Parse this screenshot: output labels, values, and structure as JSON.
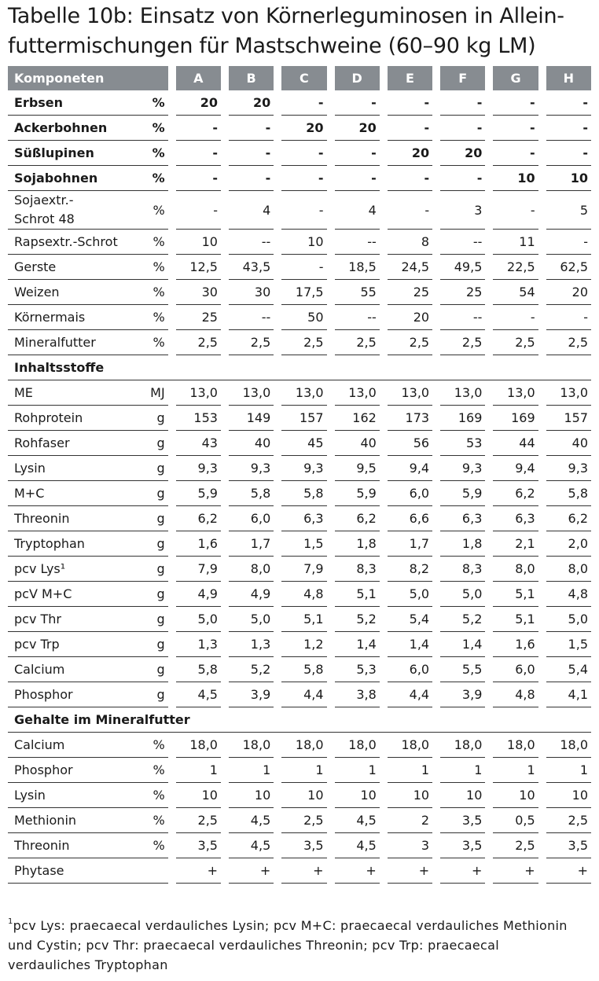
{
  "title": [
    "Tabelle 10b: Einsatz von Körnerleguminosen in Allein-",
    "futtermischungen für Mastschweine (60–90 kg LM)"
  ],
  "table": {
    "header": [
      "Komponeten",
      "A",
      "B",
      "C",
      "D",
      "E",
      "F",
      "G",
      "H"
    ],
    "body": [
      {
        "label": "Erbsen",
        "unit": "%",
        "bold": true,
        "values": [
          "20",
          "20",
          "-",
          "-",
          "-",
          "-",
          "-",
          "-"
        ]
      },
      {
        "label": "Ackerbohnen",
        "unit": "%",
        "bold": true,
        "values": [
          "-",
          "-",
          "20",
          "20",
          "-",
          "-",
          "-",
          "-"
        ]
      },
      {
        "label": "Süßlupinen",
        "unit": "%",
        "bold": true,
        "values": [
          "-",
          "-",
          "-",
          "-",
          "20",
          "20",
          "-",
          "-"
        ]
      },
      {
        "label": "Sojabohnen",
        "unit": "%",
        "bold": true,
        "values": [
          "-",
          "-",
          "-",
          "-",
          "-",
          "-",
          "10",
          "10"
        ]
      },
      {
        "label": "Sojaextr.-\nSchrot 48",
        "unit": "%",
        "values": [
          "-",
          "4",
          "-",
          "4",
          "-",
          "3",
          "-",
          "5"
        ]
      },
      {
        "label": "Rapsextr.-Schrot",
        "unit": "%",
        "values": [
          "10",
          "--",
          "10",
          "--",
          "8",
          "--",
          "11",
          "-"
        ]
      },
      {
        "label": "Gerste",
        "unit": "%",
        "values": [
          "12,5",
          "43,5",
          "-",
          "18,5",
          "24,5",
          "49,5",
          "22,5",
          "62,5"
        ]
      },
      {
        "label": "Weizen",
        "unit": "%",
        "values": [
          "30",
          "30",
          "17,5",
          "55",
          "25",
          "25",
          "54",
          "20"
        ]
      },
      {
        "label": "Körnermais",
        "unit": "%",
        "values": [
          "25",
          "--",
          "50",
          "--",
          "20",
          "--",
          "-",
          "-"
        ]
      },
      {
        "label": "Mineralfutter",
        "unit": "%",
        "values": [
          "2,5",
          "2,5",
          "2,5",
          "2,5",
          "2,5",
          "2,5",
          "2,5",
          "2,5"
        ]
      },
      {
        "section": "Inhaltsstoffe"
      },
      {
        "label": "ME",
        "unit": "MJ",
        "values": [
          "13,0",
          "13,0",
          "13,0",
          "13,0",
          "13,0",
          "13,0",
          "13,0",
          "13,0"
        ]
      },
      {
        "label": "Rohprotein",
        "unit": "g",
        "values": [
          "153",
          "149",
          "157",
          "162",
          "173",
          "169",
          "169",
          "157"
        ]
      },
      {
        "label": "Rohfaser",
        "unit": "g",
        "values": [
          "43",
          "40",
          "45",
          "40",
          "56",
          "53",
          "44",
          "40"
        ]
      },
      {
        "label": "Lysin",
        "unit": "g",
        "values": [
          "9,3",
          "9,3",
          "9,3",
          "9,5",
          "9,4",
          "9,3",
          "9,4",
          "9,3"
        ]
      },
      {
        "label": "M+C",
        "unit": "g",
        "values": [
          "5,9",
          "5,8",
          "5,8",
          "5,9",
          "6,0",
          "5,9",
          "6,2",
          "5,8"
        ]
      },
      {
        "label": "Threonin",
        "unit": "g",
        "values": [
          "6,2",
          "6,0",
          "6,3",
          "6,2",
          "6,6",
          "6,3",
          "6,3",
          "6,2"
        ]
      },
      {
        "label": "Tryptophan",
        "unit": "g",
        "values": [
          "1,6",
          "1,7",
          "1,5",
          "1,8",
          "1,7",
          "1,8",
          "2,1",
          "2,0"
        ]
      },
      {
        "label": "pcv Lys¹",
        "unit": "g",
        "values": [
          "7,9",
          "8,0",
          "7,9",
          "8,3",
          "8,2",
          "8,3",
          "8,0",
          "8,0"
        ]
      },
      {
        "label": "pcV M+C",
        "unit": "g",
        "values": [
          "4,9",
          "4,9",
          "4,8",
          "5,1",
          "5,0",
          "5,0",
          "5,1",
          "4,8"
        ]
      },
      {
        "label": "pcv Thr",
        "unit": "g",
        "values": [
          "5,0",
          "5,0",
          "5,1",
          "5,2",
          "5,4",
          "5,2",
          "5,1",
          "5,0"
        ]
      },
      {
        "label": "pcv Trp",
        "unit": "g",
        "values": [
          "1,3",
          "1,3",
          "1,2",
          "1,4",
          "1,4",
          "1,4",
          "1,6",
          "1,5"
        ]
      },
      {
        "label": "Calcium",
        "unit": "g",
        "values": [
          "5,8",
          "5,2",
          "5,8",
          "5,3",
          "6,0",
          "5,5",
          "6,0",
          "5,4"
        ]
      },
      {
        "label": "Phosphor",
        "unit": "g",
        "values": [
          "4,5",
          "3,9",
          "4,4",
          "3,8",
          "4,4",
          "3,9",
          "4,8",
          "4,1"
        ]
      },
      {
        "section": "Gehalte im Mineralfutter"
      },
      {
        "label": "Calcium",
        "unit": "%",
        "values": [
          "18,0",
          "18,0",
          "18,0",
          "18,0",
          "18,0",
          "18,0",
          "18,0",
          "18,0"
        ]
      },
      {
        "label": "Phosphor",
        "unit": "%",
        "values": [
          "1",
          "1",
          "1",
          "1",
          "1",
          "1",
          "1",
          "1"
        ]
      },
      {
        "label": "Lysin",
        "unit": "%",
        "values": [
          "10",
          "10",
          "10",
          "10",
          "10",
          "10",
          "10",
          "10"
        ]
      },
      {
        "label": "Methionin",
        "unit": "%",
        "values": [
          "2,5",
          "4,5",
          "2,5",
          "4,5",
          "2",
          "3,5",
          "0,5",
          "2,5"
        ]
      },
      {
        "label": "Threonin",
        "unit": "%",
        "values": [
          "3,5",
          "4,5",
          "3,5",
          "4,5",
          "3",
          "3,5",
          "2,5",
          "3,5"
        ]
      },
      {
        "label": "Phytase",
        "values": [
          "+",
          "+",
          "+",
          "+",
          "+",
          "+",
          "+",
          "+"
        ]
      }
    ]
  },
  "footnote": {
    "marker": "1",
    "text": "pcv Lys: praecaecal verdauliches Lysin; pcv M+C: praecaecal verdauliches Methionin und Cystin; pcv Thr: praecaecal verdauliches Threonin; pcv Trp: praecaecal verdauliches Tryptophan"
  }
}
